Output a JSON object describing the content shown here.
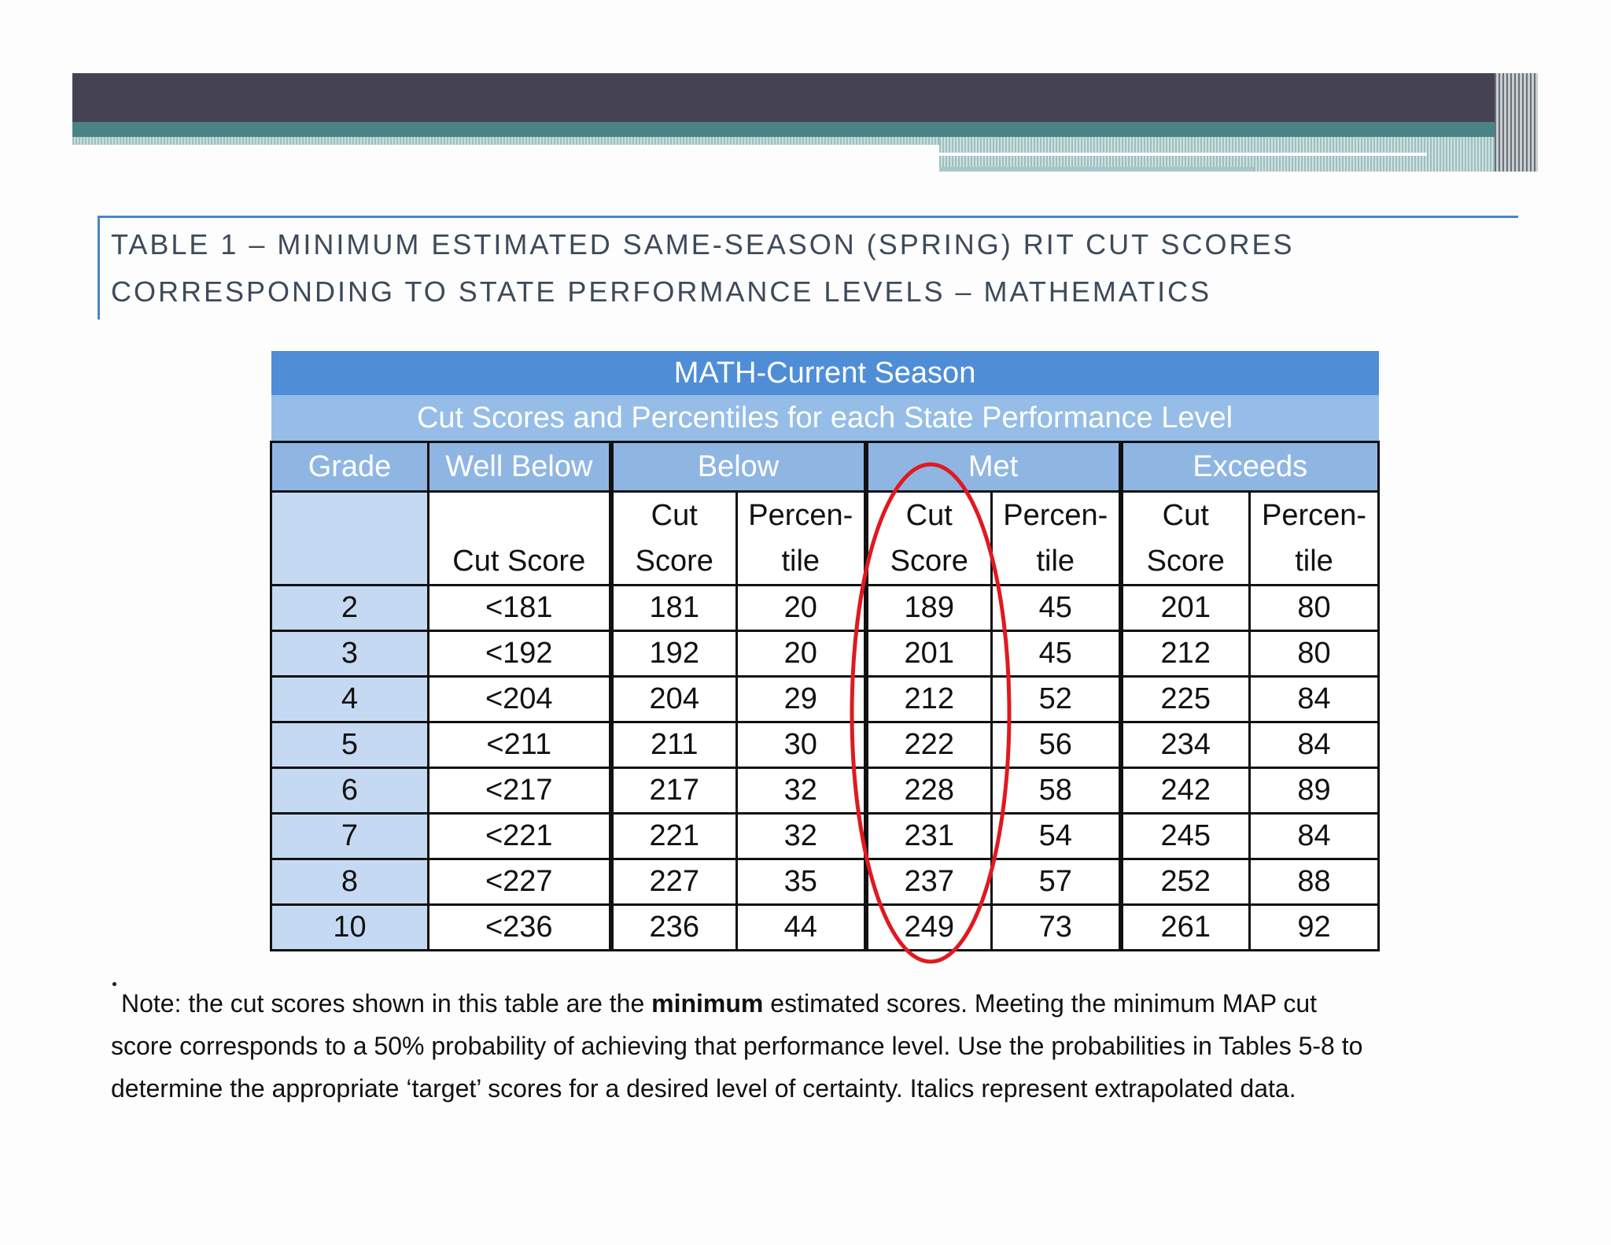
{
  "caption": {
    "line1": "TABLE 1 – MINIMUM ESTIMATED SAME-SEASON (SPRING) RIT CUT SCORES",
    "line2": "CORRESPONDING TO STATE PERFORMANCE LEVELS – MATHEMATICS"
  },
  "table": {
    "title": "MATH-Current Season",
    "subtitle": "Cut Scores and Percentiles for each State Performance Level",
    "levels": {
      "grade": "Grade",
      "well_below": "Well Below",
      "below": "Below",
      "met": "Met",
      "exceeds": "Exceeds"
    },
    "columns": {
      "well_below_cut": "Cut Score",
      "cut_1": "Cut",
      "cut_2": "Score",
      "pct_1": "Percen-",
      "pct_2": "tile"
    },
    "rows": [
      {
        "grade": "2",
        "wb": "<181",
        "b_cut": "181",
        "b_pct": "20",
        "m_cut": "189",
        "m_pct": "45",
        "e_cut": "201",
        "e_pct": "80"
      },
      {
        "grade": "3",
        "wb": "<192",
        "b_cut": "192",
        "b_pct": "20",
        "m_cut": "201",
        "m_pct": "45",
        "e_cut": "212",
        "e_pct": "80"
      },
      {
        "grade": "4",
        "wb": "<204",
        "b_cut": "204",
        "b_pct": "29",
        "m_cut": "212",
        "m_pct": "52",
        "e_cut": "225",
        "e_pct": "84"
      },
      {
        "grade": "5",
        "wb": "<211",
        "b_cut": "211",
        "b_pct": "30",
        "m_cut": "222",
        "m_pct": "56",
        "e_cut": "234",
        "e_pct": "84"
      },
      {
        "grade": "6",
        "wb": "<217",
        "b_cut": "217",
        "b_pct": "32",
        "m_cut": "228",
        "m_pct": "58",
        "e_cut": "242",
        "e_pct": "89"
      },
      {
        "grade": "7",
        "wb": "<221",
        "b_cut": "221",
        "b_pct": "32",
        "m_cut": "231",
        "m_pct": "54",
        "e_cut": "245",
        "e_pct": "84"
      },
      {
        "grade": "8",
        "wb": "<227",
        "b_cut": "227",
        "b_pct": "35",
        "m_cut": "237",
        "m_pct": "57",
        "e_cut": "252",
        "e_pct": "88"
      },
      {
        "grade": "10",
        "wb": "<236",
        "b_cut": "236",
        "b_pct": "44",
        "m_cut": "249",
        "m_pct": "73",
        "e_cut": "261",
        "e_pct": "92"
      }
    ]
  },
  "note": {
    "line1_a": "Note:  the cut scores shown in this table are the ",
    "line1_bold": "minimum",
    "line1_b": " estimated scores. Meeting the minimum MAP cut",
    "line2": "score corresponds to a 50% probability of achieving that performance level. Use the probabilities in Tables 5-8 to",
    "line3": "determine the appropriate ‘target’ scores for a desired level of certainty. Italics represent extrapolated data."
  },
  "colors": {
    "header_dark": "#454353",
    "header_teal": "#4a8386",
    "table_title_bg": "#4f8ed6",
    "table_subtitle_bg": "#95bde8",
    "grade_col_bg": "#c5daf2",
    "highlight": "#e0191f"
  }
}
